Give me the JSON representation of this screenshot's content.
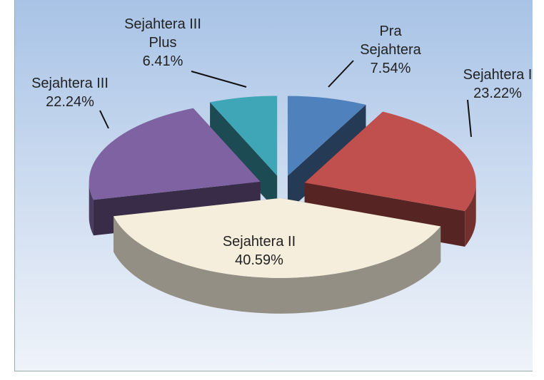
{
  "chart_data": {
    "type": "pie",
    "categories": [
      "Pra Sejahtera",
      "Sejahtera I",
      "Sejahtera II",
      "Sejahtera III",
      "Sejahtera III Plus"
    ],
    "values": [
      7.54,
      23.22,
      40.59,
      22.24,
      6.41
    ],
    "value_labels": [
      "7.54%",
      "23.22%",
      "40.59%",
      "22.24%",
      "6.41%"
    ],
    "colors": [
      "#4f81bd",
      "#c0504d",
      "#f6eedc",
      "#7f62a1",
      "#3fa6b8"
    ]
  }
}
